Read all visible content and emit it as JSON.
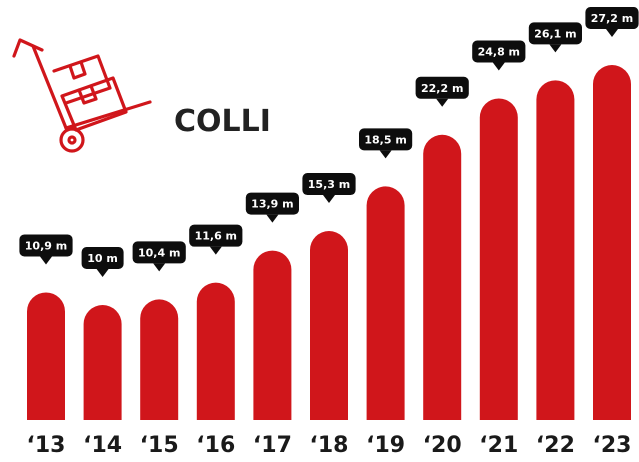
{
  "colors": {
    "bar": "#d0161b",
    "bubble": "#0d0d0d",
    "icon": "#d0161b"
  },
  "icon": "hand-truck-icon",
  "chart_data": {
    "type": "bar",
    "title": "COLLI",
    "categories": [
      "‘13",
      "‘14",
      "‘15",
      "‘16",
      "‘17",
      "‘18",
      "‘19",
      "‘20",
      "‘21",
      "‘22",
      "‘23"
    ],
    "values": [
      10.9,
      10.0,
      10.4,
      11.6,
      13.9,
      15.3,
      18.5,
      22.2,
      24.8,
      26.1,
      27.2
    ],
    "data_labels": [
      "10,9 m",
      "10 m",
      "10,4 m",
      "11,6 m",
      "13,9 m",
      "15,3 m",
      "18,5 m",
      "22,2 m",
      "24,8 m",
      "26,1 m",
      "27,2 m"
    ],
    "xlabel": "",
    "ylabel": "",
    "grid": false,
    "legend": "none"
  }
}
